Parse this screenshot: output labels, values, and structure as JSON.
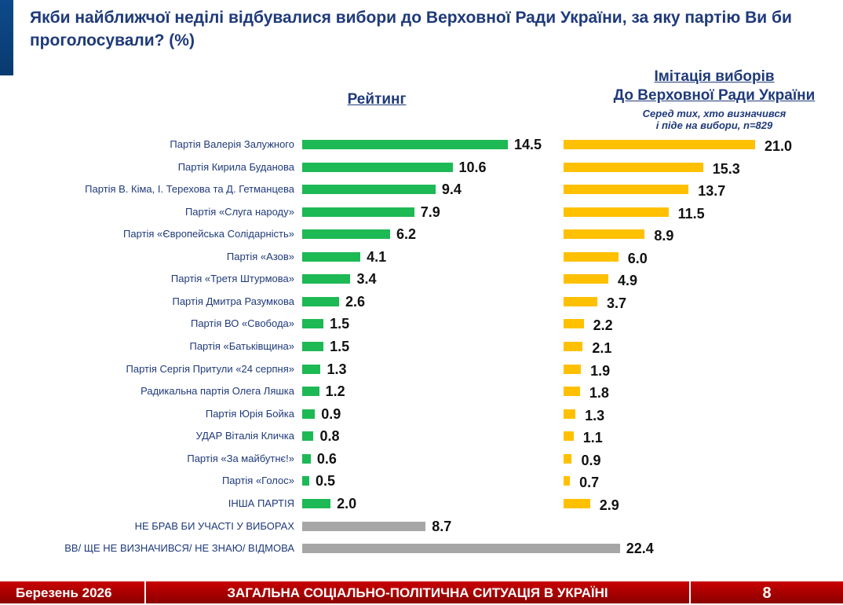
{
  "title": "Якби найближчої неділі відбувалися вибори до Верховної Ради України, за яку партію Ви би проголосували? (%)",
  "footer": {
    "date": "Березень 2026",
    "section": "ЗАГАЛЬНА СОЦІАЛЬНО-ПОЛІТИЧНА СИТУАЦІЯ В УКРАЇНІ",
    "page": "8"
  },
  "colors": {
    "rating": "#1db954",
    "simulation": "#ffc000",
    "other": "#a6a6a6"
  },
  "chart_data": {
    "type": "bar",
    "orientation": "horizontal",
    "series_headers": {
      "rating": "Рейтинг",
      "simulation_line1": "Імітація виборів",
      "simulation_line2": "До Верховної Ради України",
      "simulation_note_line1": "Серед тих, хто визначився",
      "simulation_note_line2": "і піде на вибори, n=829"
    },
    "categories": [
      "Партія Валерія Залужного",
      "Партія Кирила Буданова",
      "Партія В. Кіма,  І. Терехова та Д. Гетманцева",
      "Партія «Слуга народу»",
      "Партія «Європейська Солідарність»",
      "Партія «Азов»",
      "Партія «Третя Штурмова»",
      "Партія Дмитра Разумкова",
      "Партія ВО «Свобода»",
      "Партія «Батьківщина»",
      "Партія Сергія Притули «24 серпня»",
      "Радикальна партія Олега Ляшка",
      "Партія Юрія Бойка",
      "УДАР Віталія Кличка",
      "Партія «За майбутнє!»",
      "Партія «Голос»",
      "ІНША ПАРТІЯ",
      "НЕ БРАВ БИ УЧАСТІ У ВИБОРАХ",
      "ВВ/ ЩЕ НЕ ВИЗНАЧИВСЯ/ НЕ ЗНАЮ/ ВІДМОВА"
    ],
    "series": [
      {
        "name": "Рейтинг",
        "values": [
          14.5,
          10.6,
          9.4,
          7.9,
          6.2,
          4.1,
          3.4,
          2.6,
          1.5,
          1.5,
          1.3,
          1.2,
          0.9,
          0.8,
          0.6,
          0.5,
          2.0,
          8.7,
          22.4
        ]
      },
      {
        "name": "Імітація виборів",
        "values": [
          21.0,
          15.3,
          13.7,
          11.5,
          8.9,
          6.0,
          4.9,
          3.7,
          2.2,
          2.1,
          1.9,
          1.8,
          1.3,
          1.1,
          0.9,
          0.7,
          2.9,
          null,
          null
        ]
      }
    ],
    "value_labels": {
      "rating": [
        "14.5",
        "10.6",
        "9.4",
        "7.9",
        "6.2",
        "4.1",
        "3.4",
        "2.6",
        "1.5",
        "1.5",
        "1.3",
        "1.2",
        "0.9",
        "0.8",
        "0.6",
        "0.5",
        "2.0",
        "8.7",
        "22.4"
      ],
      "simulation": [
        "21.0",
        "15.3",
        "13.7",
        "11.5",
        "8.9",
        "6.0",
        "4.9",
        "3.7",
        "2.2",
        "2.1",
        "1.9",
        "1.8",
        "1.3",
        "1.1",
        "0.9",
        "0.7",
        "2.9"
      ]
    }
  }
}
